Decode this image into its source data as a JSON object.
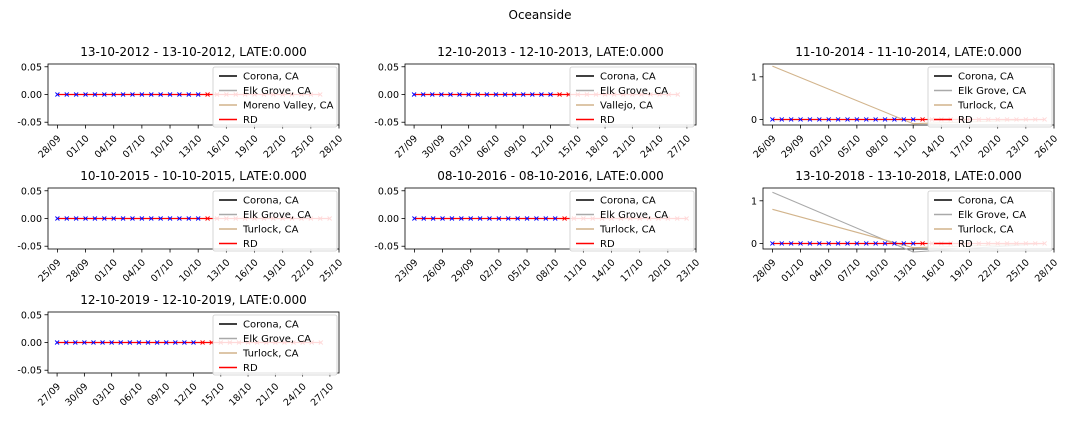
{
  "suptitle": "Oceanside",
  "colors": {
    "Corona, CA": "#000000",
    "Elk Grove, CA": "#a9a9a9",
    "Moreno Valley, CA": "#d2b48c",
    "Vallejo, CA": "#d2b48c",
    "Turlock, CA": "#d2b48c",
    "RD": "#ff0000",
    "pre_marker": "#0000ff",
    "post_marker": "#ff0000",
    "pre_line": "#ff0000",
    "post_line": "#ff0000"
  },
  "chart_data": [
    {
      "type": "line",
      "title": "13-10-2012 - 13-10-2012, LATE:0.000",
      "y_ticks": [
        "0.05",
        "0.00",
        "-0.05"
      ],
      "ylim": [
        -0.055,
        0.055
      ],
      "x_ticks": [
        "28/09",
        "01/10",
        "04/10",
        "07/10",
        "10/10",
        "13/10",
        "16/10",
        "19/10",
        "22/10",
        "25/10",
        "28/10"
      ],
      "xlim": [
        "27/09",
        "28/10"
      ],
      "treatment_date": "13/10",
      "legend": [
        "Corona, CA",
        "Elk Grove, CA",
        "Moreno Valley, CA",
        "RD"
      ],
      "series": [
        {
          "name": "Corona, CA",
          "values": [
            [
              "28/09",
              0
            ],
            [
              "26/10",
              0
            ]
          ]
        },
        {
          "name": "Elk Grove, CA",
          "values": [
            [
              "28/09",
              0
            ],
            [
              "26/10",
              0
            ]
          ]
        },
        {
          "name": "Moreno Valley, CA",
          "values": [
            [
              "28/09",
              0
            ],
            [
              "26/10",
              0
            ]
          ]
        },
        {
          "name": "RD",
          "values": [
            [
              "28/09",
              0
            ],
            [
              "26/10",
              0
            ]
          ]
        }
      ]
    },
    {
      "type": "line",
      "title": "12-10-2013 - 12-10-2013, LATE:0.000",
      "y_ticks": [
        "0.05",
        "0.00",
        "-0.05"
      ],
      "ylim": [
        -0.055,
        0.055
      ],
      "x_ticks": [
        "27/09",
        "30/09",
        "03/10",
        "06/10",
        "09/10",
        "12/10",
        "15/10",
        "18/10",
        "21/10",
        "24/10",
        "27/10"
      ],
      "xlim": [
        "26/09",
        "28/10"
      ],
      "treatment_date": "12/10",
      "legend": [
        "Corona, CA",
        "Elk Grove, CA",
        "Vallejo, CA",
        "RD"
      ],
      "series": [
        {
          "name": "Corona, CA",
          "values": [
            [
              "27/09",
              0
            ],
            [
              "26/10",
              0
            ]
          ]
        },
        {
          "name": "Elk Grove, CA",
          "values": [
            [
              "27/09",
              0
            ],
            [
              "26/10",
              0
            ]
          ]
        },
        {
          "name": "Vallejo, CA",
          "values": [
            [
              "27/09",
              0
            ],
            [
              "26/10",
              0
            ]
          ]
        },
        {
          "name": "RD",
          "values": [
            [
              "27/09",
              0
            ],
            [
              "26/10",
              0
            ]
          ]
        }
      ]
    },
    {
      "type": "line",
      "title": "11-10-2014 - 11-10-2014, LATE:0.000",
      "y_ticks": [
        "1",
        "0"
      ],
      "ylim": [
        -0.13,
        1.3
      ],
      "x_ticks": [
        "26/09",
        "29/09",
        "02/10",
        "05/10",
        "08/10",
        "11/10",
        "14/10",
        "17/10",
        "20/10",
        "23/10",
        "26/10"
      ],
      "xlim": [
        "25/09",
        "26/10"
      ],
      "treatment_date": "11/10",
      "legend": [
        "Corona, CA",
        "Elk Grove, CA",
        "Turlock, CA",
        "RD"
      ],
      "series": [
        {
          "name": "Corona, CA",
          "values": [
            [
              "26/09",
              0
            ],
            [
              "25/10",
              0
            ]
          ]
        },
        {
          "name": "Elk Grove, CA",
          "values": [
            [
              "26/09",
              0
            ],
            [
              "25/10",
              0
            ]
          ]
        },
        {
          "name": "Turlock, CA",
          "values": [
            [
              "26/09",
              1.25
            ],
            [
              "11/10",
              -0.1
            ],
            [
              "25/10",
              0
            ]
          ]
        },
        {
          "name": "RD",
          "values": [
            [
              "26/09",
              0
            ],
            [
              "25/10",
              0
            ]
          ]
        }
      ]
    },
    {
      "type": "line",
      "title": "10-10-2015 - 10-10-2015, LATE:0.000",
      "y_ticks": [
        "0.05",
        "0.00",
        "-0.05"
      ],
      "ylim": [
        -0.055,
        0.055
      ],
      "x_ticks": [
        "25/09",
        "28/09",
        "01/10",
        "04/10",
        "07/10",
        "10/10",
        "13/10",
        "16/10",
        "19/10",
        "22/10",
        "25/10"
      ],
      "xlim": [
        "24/09",
        "25/10"
      ],
      "treatment_date": "10/10",
      "legend": [
        "Corona, CA",
        "Elk Grove, CA",
        "Turlock, CA",
        "RD"
      ],
      "series": [
        {
          "name": "Corona, CA",
          "values": [
            [
              "25/09",
              0
            ],
            [
              "24/10",
              0
            ]
          ]
        },
        {
          "name": "Elk Grove, CA",
          "values": [
            [
              "25/09",
              0
            ],
            [
              "24/10",
              0
            ]
          ]
        },
        {
          "name": "Turlock, CA",
          "values": [
            [
              "25/09",
              0
            ],
            [
              "24/10",
              0
            ]
          ]
        },
        {
          "name": "RD",
          "values": [
            [
              "25/09",
              0
            ],
            [
              "24/10",
              0
            ]
          ]
        }
      ]
    },
    {
      "type": "line",
      "title": "08-10-2016 - 08-10-2016, LATE:0.000",
      "y_ticks": [
        "0.05",
        "0.00",
        "-0.05"
      ],
      "ylim": [
        -0.055,
        0.055
      ],
      "x_ticks": [
        "23/09",
        "26/09",
        "29/09",
        "02/10",
        "05/10",
        "08/10",
        "11/10",
        "14/10",
        "17/10",
        "20/10",
        "23/10"
      ],
      "xlim": [
        "22/09",
        "23/10"
      ],
      "treatment_date": "08/10",
      "legend": [
        "Corona, CA",
        "Elk Grove, CA",
        "Turlock, CA",
        "RD"
      ],
      "series": [
        {
          "name": "Corona, CA",
          "values": [
            [
              "23/09",
              0
            ],
            [
              "22/10",
              0
            ]
          ]
        },
        {
          "name": "Elk Grove, CA",
          "values": [
            [
              "23/09",
              0
            ],
            [
              "22/10",
              0
            ]
          ]
        },
        {
          "name": "Turlock, CA",
          "values": [
            [
              "23/09",
              0
            ],
            [
              "22/10",
              0
            ]
          ]
        },
        {
          "name": "RD",
          "values": [
            [
              "23/09",
              0
            ],
            [
              "22/10",
              0
            ]
          ]
        }
      ]
    },
    {
      "type": "line",
      "title": "13-10-2018 - 13-10-2018, LATE:0.000",
      "y_ticks": [
        "1",
        "0"
      ],
      "ylim": [
        -0.13,
        1.3
      ],
      "x_ticks": [
        "28/09",
        "01/10",
        "04/10",
        "07/10",
        "10/10",
        "13/10",
        "16/10",
        "19/10",
        "22/10",
        "25/10",
        "28/10"
      ],
      "xlim": [
        "27/09",
        "28/10"
      ],
      "treatment_date": "13/10",
      "legend": [
        "Corona, CA",
        "Elk Grove, CA",
        "Turlock, CA",
        "RD"
      ],
      "series": [
        {
          "name": "Corona, CA",
          "values": [
            [
              "28/09",
              0
            ],
            [
              "27/10",
              0
            ]
          ]
        },
        {
          "name": "Elk Grove, CA",
          "values": [
            [
              "28/09",
              1.2
            ],
            [
              "13/10",
              -0.2
            ],
            [
              "27/10",
              0
            ]
          ]
        },
        {
          "name": "Turlock, CA",
          "values": [
            [
              "28/09",
              0.8
            ],
            [
              "13/10",
              -0.1
            ],
            [
              "27/10",
              0
            ]
          ]
        },
        {
          "name": "RD",
          "values": [
            [
              "28/09",
              0
            ],
            [
              "27/10",
              0
            ]
          ]
        }
      ]
    },
    {
      "type": "line",
      "title": "12-10-2019 - 12-10-2019, LATE:0.000",
      "y_ticks": [
        "0.05",
        "0.00",
        "-0.05"
      ],
      "ylim": [
        -0.055,
        0.055
      ],
      "x_ticks": [
        "27/09",
        "30/09",
        "03/10",
        "06/10",
        "09/10",
        "12/10",
        "15/10",
        "18/10",
        "21/10",
        "24/10",
        "27/10"
      ],
      "xlim": [
        "26/09",
        "28/10"
      ],
      "treatment_date": "12/10",
      "legend": [
        "Corona, CA",
        "Elk Grove, CA",
        "Turlock, CA",
        "RD"
      ],
      "series": [
        {
          "name": "Corona, CA",
          "values": [
            [
              "27/09",
              0
            ],
            [
              "26/10",
              0
            ]
          ]
        },
        {
          "name": "Elk Grove, CA",
          "values": [
            [
              "27/09",
              0
            ],
            [
              "26/10",
              0
            ]
          ]
        },
        {
          "name": "Turlock, CA",
          "values": [
            [
              "27/09",
              0
            ],
            [
              "26/10",
              0
            ]
          ]
        },
        {
          "name": "RD",
          "values": [
            [
              "27/09",
              0
            ],
            [
              "26/10",
              0
            ]
          ]
        }
      ]
    }
  ]
}
